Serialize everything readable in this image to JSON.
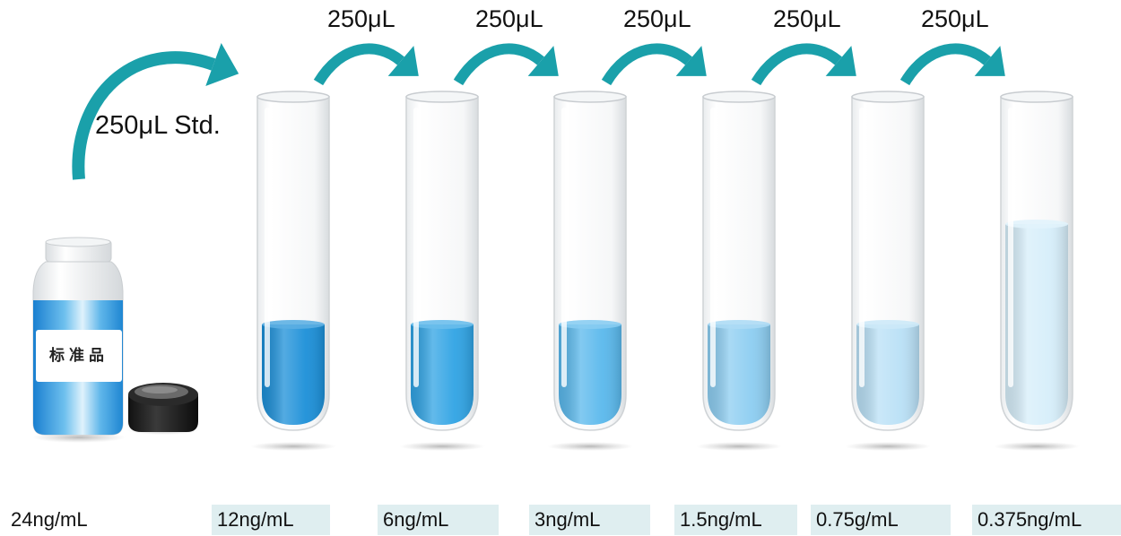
{
  "transfer_volumes": [
    "250μL",
    "250μL",
    "250μL",
    "250μL",
    "250μL"
  ],
  "standard_transfer_label": "250μL Std.",
  "bottle_label": "标准品",
  "concentrations": [
    "24ng/mL",
    "12ng/mL",
    "6ng/mL",
    "3ng/mL",
    "1.5ng/mL",
    "0.75g/mL",
    "0.375ng/mL"
  ],
  "colors": {
    "arrow": "#1aa0aa",
    "liquid_levels": [
      "#1b8fd8",
      "#2fa3e4",
      "#59b8ec",
      "#8ccdf1",
      "#b9e0f6",
      "#d6eefa"
    ],
    "label_box": "#dfeef0",
    "cap": "#1e1e1e"
  }
}
